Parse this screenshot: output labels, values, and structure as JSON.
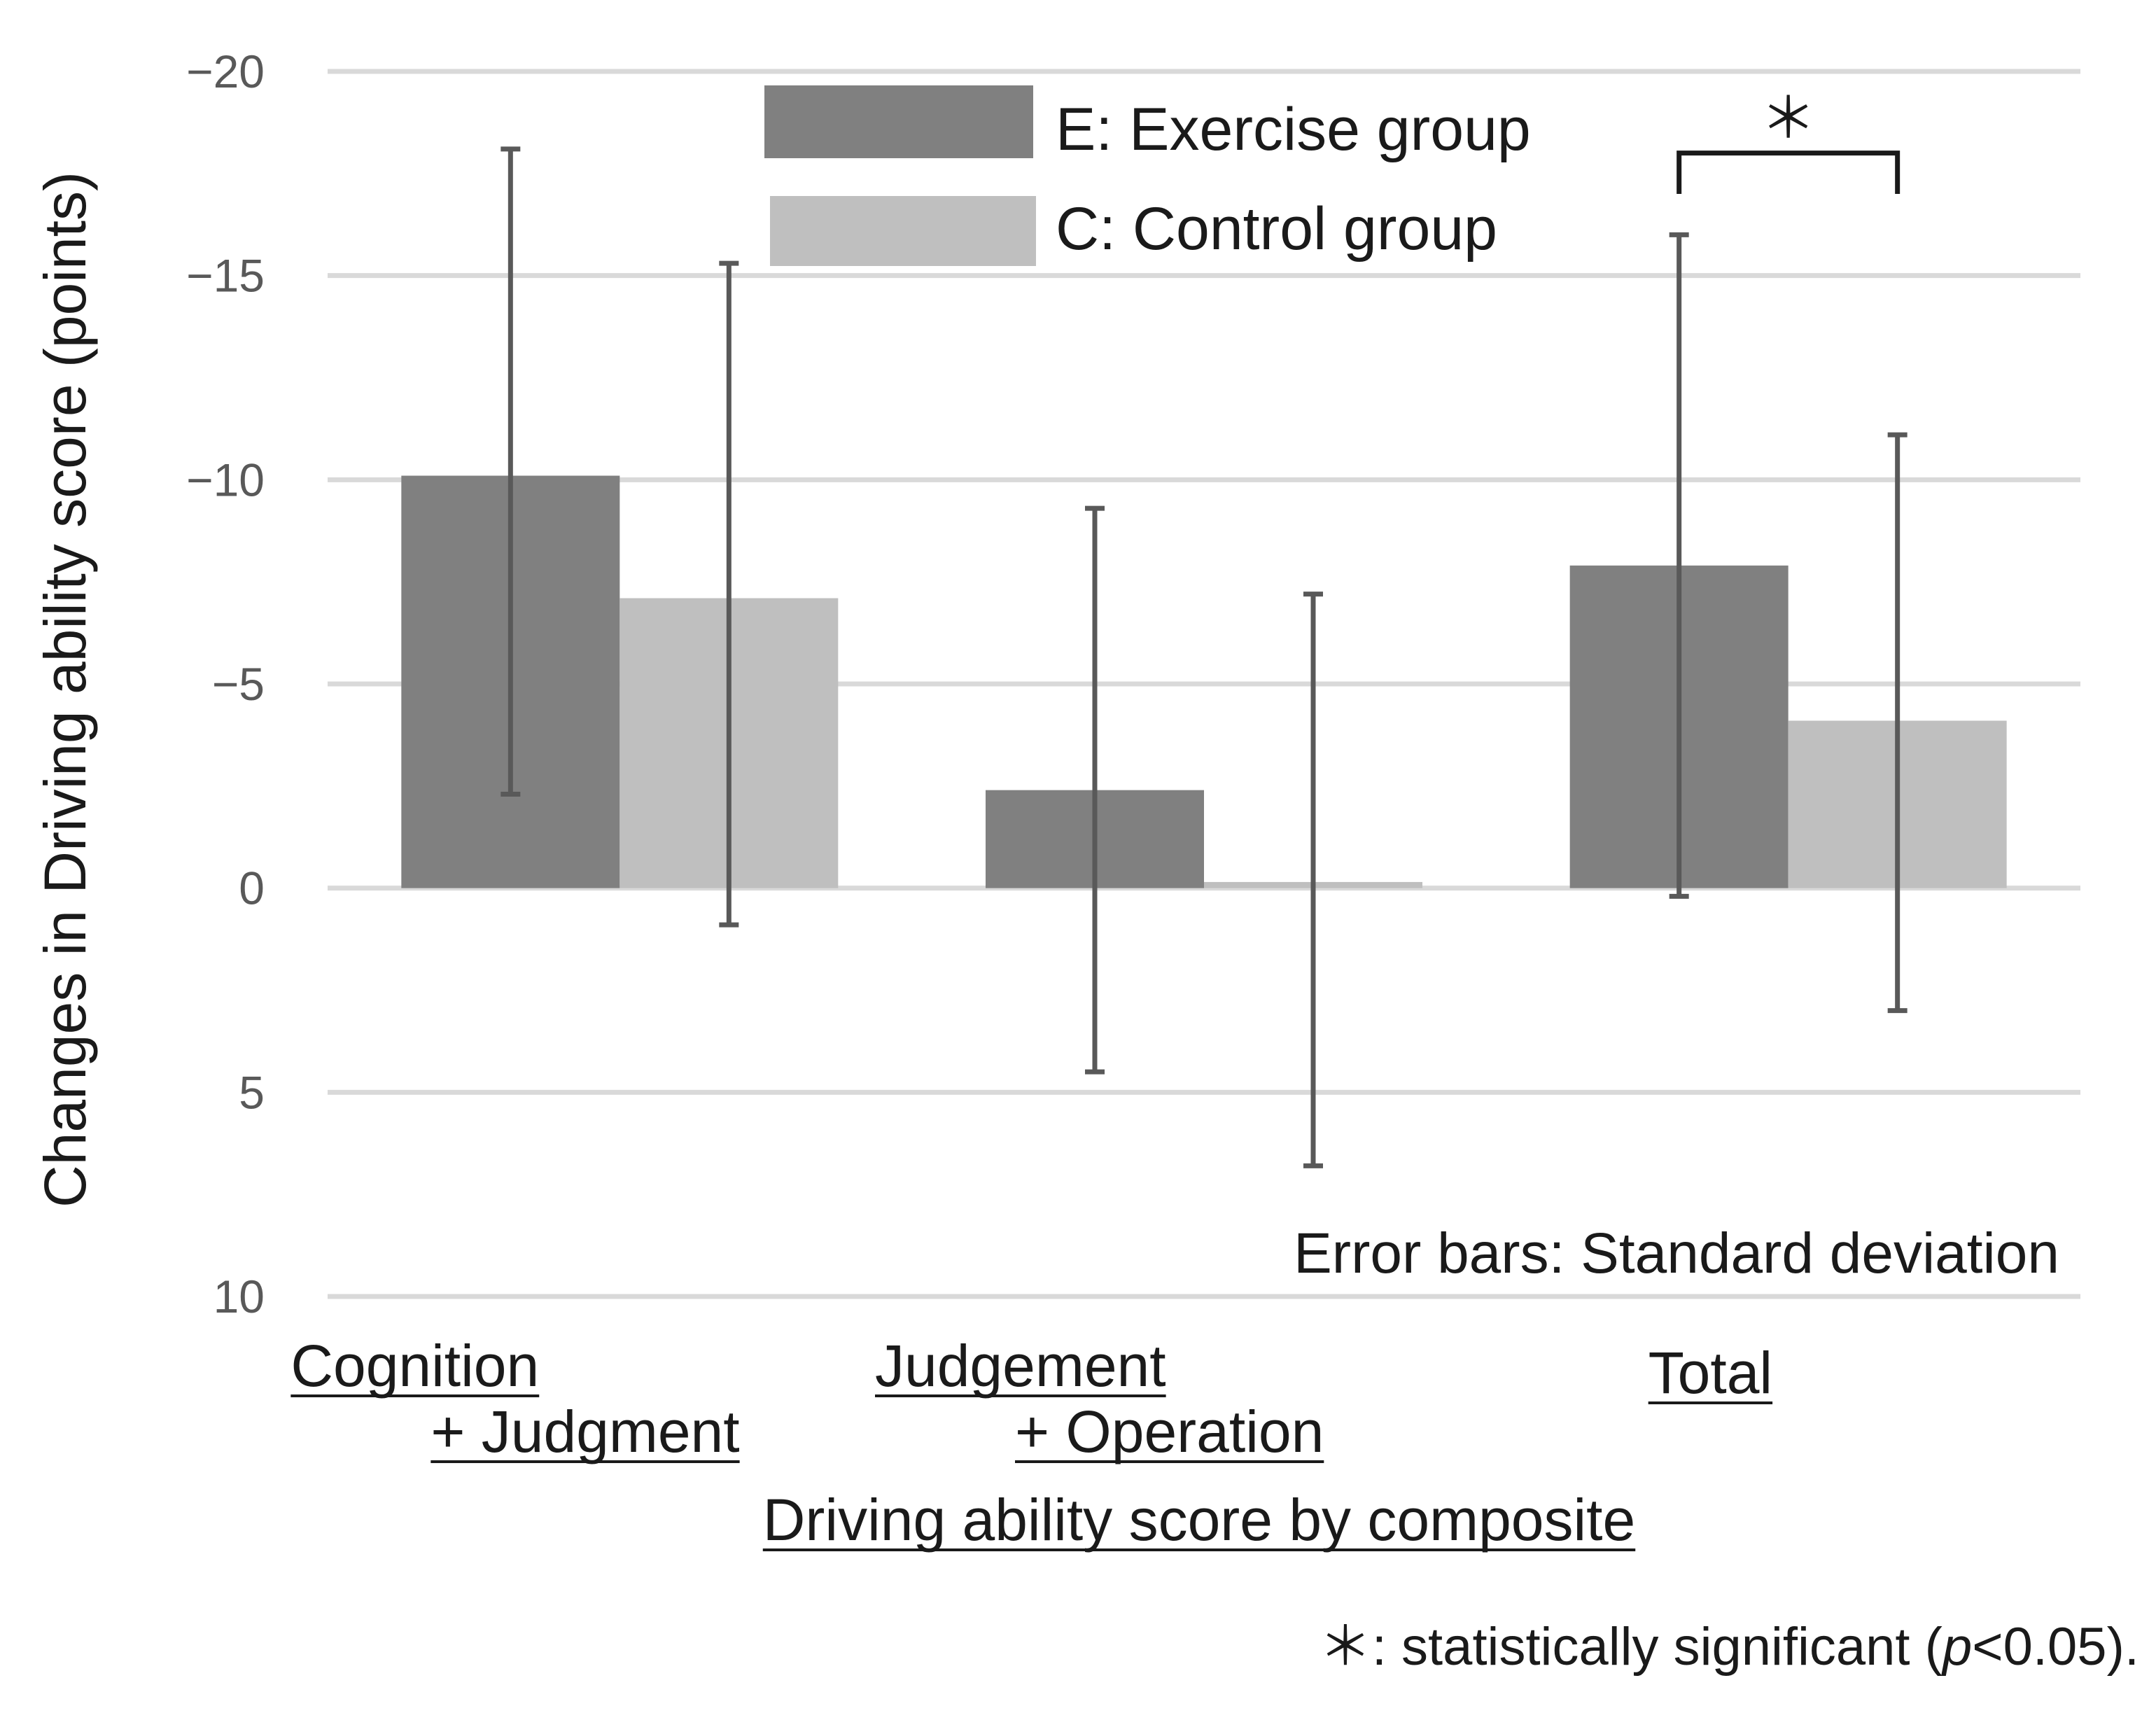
{
  "chart_data": {
    "type": "bar",
    "categories": [
      {
        "line1": "Cognition",
        "line2": "+ Judgment"
      },
      {
        "line1": "Judgement",
        "line2": "+ Operation"
      },
      {
        "line1": "Total",
        "line2": ""
      }
    ],
    "series": [
      {
        "name": "E: Exercise group",
        "color": "#808080",
        "values": [
          -10.1,
          -2.4,
          -7.9
        ],
        "error_top": [
          -18.1,
          -9.3,
          -16.0
        ],
        "error_bottom": [
          -2.3,
          4.5,
          0.2
        ]
      },
      {
        "name": "C: Control group",
        "color": "#bfbfbf",
        "values": [
          -7.1,
          -0.15,
          -4.1
        ],
        "error_top": [
          -15.3,
          -7.2,
          -11.1
        ],
        "error_bottom": [
          0.9,
          6.8,
          3.0
        ]
      }
    ],
    "ylim": [
      -20,
      10
    ],
    "yticks": [
      -20,
      -15,
      -10,
      -5,
      0,
      5,
      10
    ],
    "ytick_labels": [
      "−20",
      "−15",
      "−10",
      "−5",
      "0",
      "5",
      "10"
    ],
    "ylabel": "Changes in Driving ability score  (points)",
    "xlabel": "Driving ability score by composite",
    "grid": true,
    "legend_position": "top-center",
    "error_bar_note": "Error bars: Standard deviation",
    "significance": {
      "symbol": "＊",
      "category_index": 2,
      "bracket_top_value": -18.0,
      "bracket_end_value": -17.0
    },
    "footnote": {
      "prefix": "＊: statistically significant (",
      "p_symbol": "p",
      "suffix": "<0.05)."
    },
    "error_bar_color": "#595959",
    "grid_color": "#d9d9d9",
    "bracket_color": "#1a1a1a"
  }
}
